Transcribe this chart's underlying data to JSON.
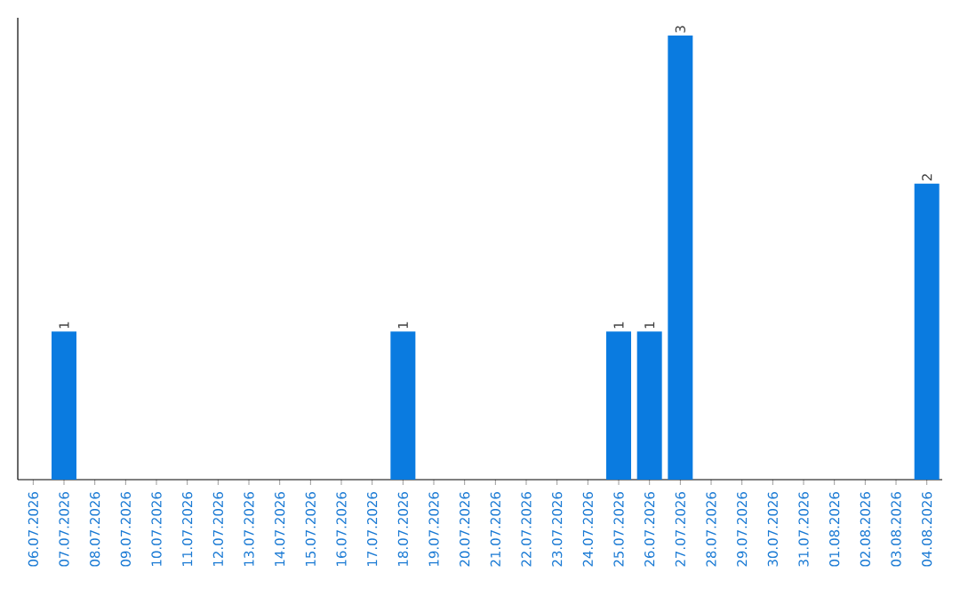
{
  "chart_data": {
    "type": "bar",
    "categories": [
      "06.07.2026",
      "07.07.2026",
      "08.07.2026",
      "09.07.2026",
      "10.07.2026",
      "11.07.2026",
      "12.07.2026",
      "13.07.2026",
      "14.07.2026",
      "15.07.2026",
      "16.07.2026",
      "17.07.2026",
      "18.07.2026",
      "19.07.2026",
      "20.07.2026",
      "21.07.2026",
      "22.07.2026",
      "23.07.2026",
      "24.07.2026",
      "25.07.2026",
      "26.07.2026",
      "27.07.2026",
      "28.07.2026",
      "29.07.2026",
      "30.07.2026",
      "31.07.2026",
      "01.08.2026",
      "02.08.2026",
      "03.08.2026",
      "04.08.2026"
    ],
    "values": [
      0,
      1,
      0,
      0,
      0,
      0,
      0,
      0,
      0,
      0,
      0,
      0,
      1,
      0,
      0,
      0,
      0,
      0,
      0,
      1,
      1,
      3,
      0,
      0,
      0,
      0,
      0,
      0,
      0,
      2
    ],
    "value_labels": [
      null,
      "1",
      null,
      null,
      null,
      null,
      null,
      null,
      null,
      null,
      null,
      null,
      "1",
      null,
      null,
      null,
      null,
      null,
      null,
      "1",
      "1",
      "3",
      null,
      null,
      null,
      null,
      null,
      null,
      null,
      "2"
    ],
    "color": "#0a7be0"
  }
}
